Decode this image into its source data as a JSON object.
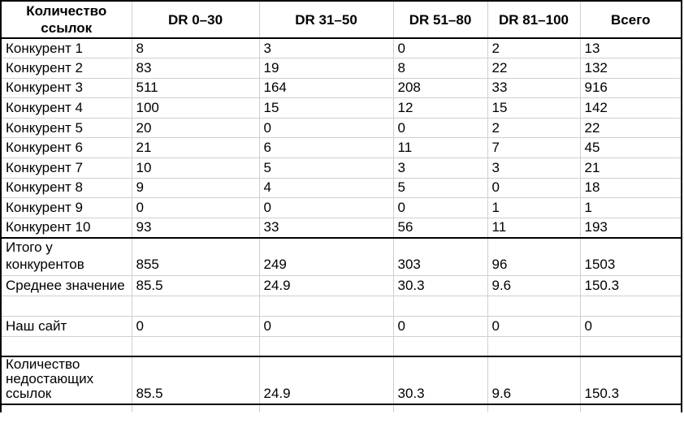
{
  "colors": {
    "background": "#ffffff",
    "text": "#000000",
    "grid_line": "#cfcfcf",
    "border_strong": "#000000"
  },
  "table": {
    "corner_header": "Количество ссылок",
    "column_headers": [
      "DR 0–30",
      "DR 31–50",
      "DR 51–80",
      "DR 81–100",
      "Всего"
    ],
    "rows": [
      {
        "type": "data",
        "label": "Конкурент 1",
        "values": [
          "8",
          "3",
          "0",
          "2",
          "13"
        ]
      },
      {
        "type": "data",
        "label": "Конкурент 2",
        "values": [
          "83",
          "19",
          "8",
          "22",
          "132"
        ]
      },
      {
        "type": "data",
        "label": "Конкурент 3",
        "values": [
          "511",
          "164",
          "208",
          "33",
          "916"
        ]
      },
      {
        "type": "data",
        "label": "Конкурент 4",
        "values": [
          "100",
          "15",
          "12",
          "15",
          "142"
        ]
      },
      {
        "type": "data",
        "label": "Конкурент 5",
        "values": [
          "20",
          "0",
          "0",
          "2",
          "22"
        ]
      },
      {
        "type": "data",
        "label": "Конкурент 6",
        "values": [
          "21",
          "6",
          "11",
          "7",
          "45"
        ]
      },
      {
        "type": "data",
        "label": "Конкурент 7",
        "values": [
          "10",
          "5",
          "3",
          "3",
          "21"
        ]
      },
      {
        "type": "data",
        "label": "Конкурент 8",
        "values": [
          "9",
          "4",
          "5",
          "0",
          "18"
        ]
      },
      {
        "type": "data",
        "label": "Конкурент 9",
        "values": [
          "0",
          "0",
          "0",
          "1",
          "1"
        ]
      },
      {
        "type": "data",
        "label": "Конкурент 10",
        "values": [
          "93",
          "33",
          "56",
          "11",
          "193"
        ]
      },
      {
        "type": "total",
        "label": "Итого у конкурентов",
        "values": [
          "855",
          "249",
          "303",
          "96",
          "1503"
        ]
      },
      {
        "type": "average",
        "label": "Среднее значение",
        "values": [
          "85.5",
          "24.9",
          "30.3",
          "9.6",
          "150.3"
        ]
      },
      {
        "type": "empty",
        "label": "",
        "values": [
          "",
          "",
          "",
          "",
          ""
        ]
      },
      {
        "type": "site",
        "label": "Наш сайт",
        "values": [
          "0",
          "0",
          "0",
          "0",
          "0"
        ]
      },
      {
        "type": "empty",
        "label": "",
        "values": [
          "",
          "",
          "",
          "",
          ""
        ]
      },
      {
        "type": "missing",
        "label": "Количество недостающих ссылок",
        "values": [
          "85.5",
          "24.9",
          "30.3",
          "9.6",
          "150.3"
        ]
      },
      {
        "type": "stub",
        "label": "",
        "values": [
          "",
          "",
          "",
          "",
          ""
        ]
      }
    ]
  }
}
